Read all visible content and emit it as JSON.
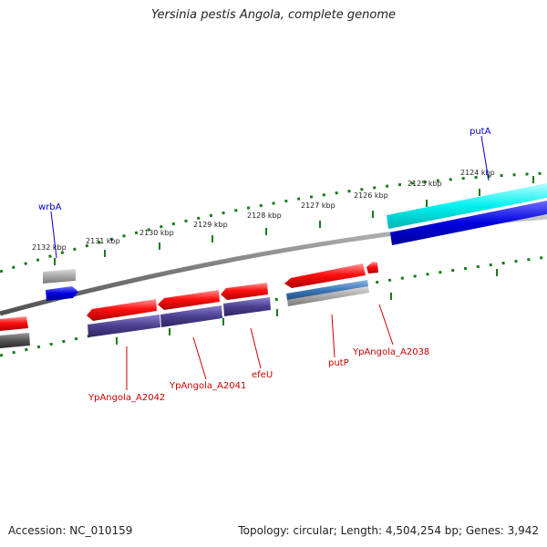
{
  "title": "Yersinia pestis Angola, complete genome",
  "footer": {
    "accession": "Accession: NC_010159",
    "summary": "Topology: circular; Length: 4,504,254 bp; Genes: 3,942"
  },
  "colors": {
    "forward_gene": "#ff0000",
    "reverse_gene": "#4a3f8c",
    "cyan_gene": "#00e5e5",
    "blue_gene": "#0000dd",
    "label_forward": "#0000cc",
    "label_reverse": "#cc0000",
    "tick": "#1a7a1a"
  },
  "scale_labels": [
    "2132 kbp",
    "2131 kbp",
    "2130 kbp",
    "2129 kbp",
    "2128 kbp",
    "2127 kbp",
    "2126 kbp",
    "2125 kbp",
    "2124 kbp"
  ],
  "genes_top": [
    "wrbA",
    "putA"
  ],
  "genes_bottom": [
    "YpAngola_A2042",
    "YpAngola_A2041",
    "efeU",
    "putP",
    "YpAngola_A2038"
  ]
}
